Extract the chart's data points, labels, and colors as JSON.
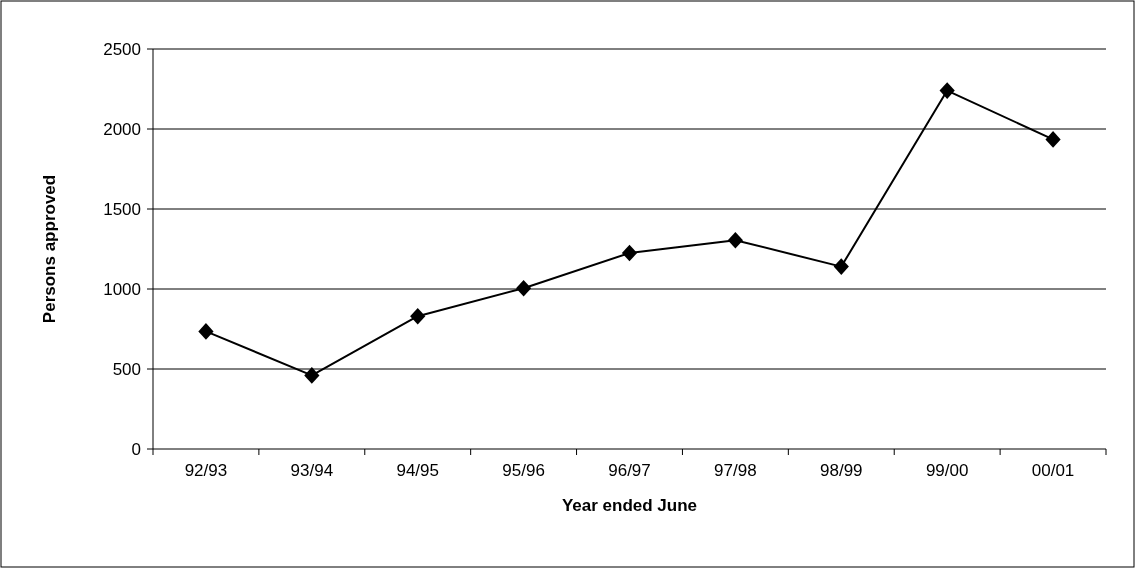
{
  "chart_data": {
    "type": "line",
    "xlabel": "Year ended June",
    "ylabel": "Persons approved",
    "categories": [
      "92/93",
      "93/94",
      "94/95",
      "95/96",
      "96/97",
      "97/98",
      "98/99",
      "99/00",
      "00/01"
    ],
    "series": [
      {
        "color": "#000000",
        "values": [
          735,
          460,
          830,
          1005,
          1225,
          1305,
          1140,
          2240,
          1935
        ]
      }
    ],
    "ylim": [
      0,
      2500
    ],
    "yticks": [
      0,
      500,
      1000,
      1500,
      2000,
      2500
    ],
    "grid": "y",
    "marker": "diamond",
    "line_style": "solid"
  }
}
